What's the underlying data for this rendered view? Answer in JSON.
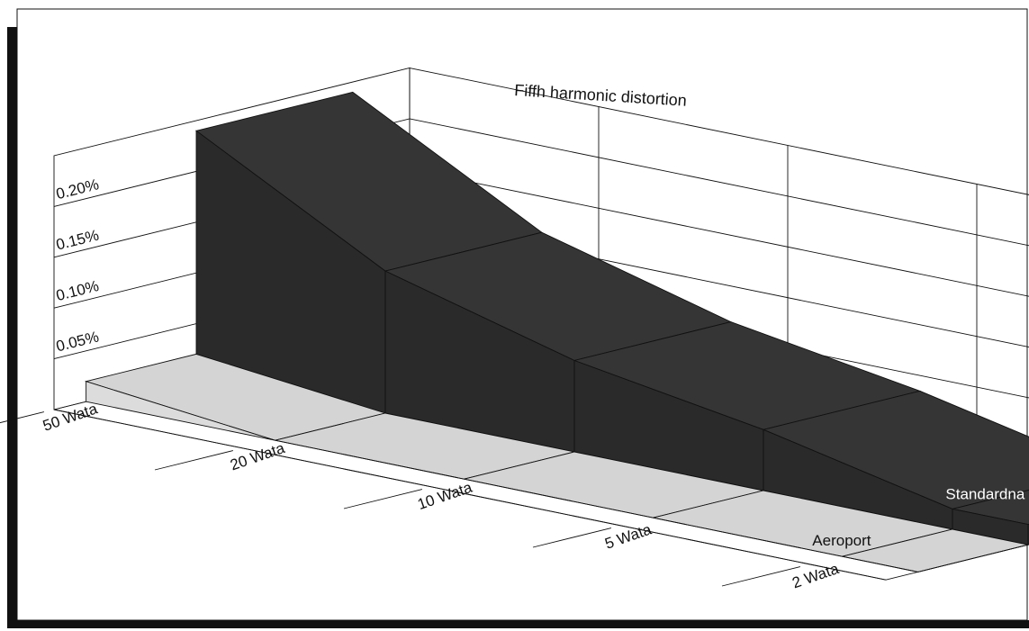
{
  "chart_data": {
    "type": "area",
    "title": "Fiffh harmonic distortion",
    "categories": [
      "50 Wata",
      "20 Wata",
      "10 Wata",
      "5 Wata",
      "2 Wata"
    ],
    "y_ticks": [
      "0.05%",
      "0.10%",
      "0.15%",
      "0.20%"
    ],
    "ylim": [
      0,
      0.25
    ],
    "grid": true,
    "series": [
      {
        "name": "Standardna tuba",
        "values": [
          0.24,
          0.14,
          0.09,
          0.06,
          0.02
        ],
        "color": "#2a2a2a"
      },
      {
        "name": "Aeroport",
        "values": [
          0.02,
          0.0,
          0.0,
          0.0,
          0.0
        ],
        "color": "#d9d9d9"
      }
    ]
  }
}
